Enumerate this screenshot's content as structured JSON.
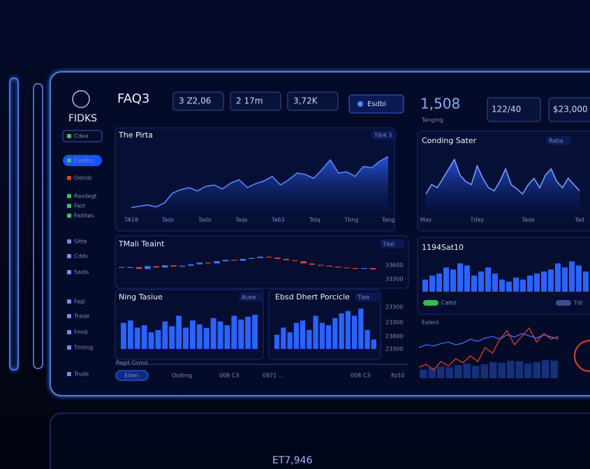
{
  "sidebar": {
    "logo": "FIDKS",
    "items": [
      "Cdea",
      "Ceatks",
      "Odnds",
      "Rasdegt",
      "Fast",
      "Fadites",
      "Sitte",
      "Cdds",
      "Sadis",
      "Fagi",
      "Trade",
      "Fmdi",
      "Tmling",
      "Truds"
    ]
  },
  "header": {
    "title": "FAQ3",
    "stats": [
      "3 Z2,06",
      "2 17m",
      "3,72K"
    ],
    "dropdown": "Esdbi",
    "kpi": "1,508",
    "kpi_label": "Tenging",
    "boxes": [
      "122/40",
      "$23,000"
    ]
  },
  "charts": {
    "pirta": {
      "title": "The Pirta",
      "tag": "T8/4 3",
      "x_labels": [
        "TA18",
        "Tads",
        "Tado",
        "Taqs",
        "Ta63",
        "Tolq",
        "Tbng",
        "Tang"
      ],
      "ylim": [
        0,
        100
      ],
      "values": [
        8,
        10,
        12,
        9,
        15,
        30,
        35,
        38,
        33,
        40,
        42,
        36,
        45,
        50,
        38,
        44,
        48,
        55,
        42,
        50,
        60,
        58,
        52,
        65,
        80,
        60,
        62,
        55,
        70,
        68,
        78,
        85
      ]
    },
    "conding": {
      "title": "Conding Sater",
      "tag": "Ratia",
      "x_labels": [
        "May",
        "Tday",
        "Tade",
        "Tad"
      ],
      "ylim": [
        0,
        100
      ],
      "values": [
        30,
        45,
        40,
        55,
        70,
        85,
        60,
        50,
        45,
        75,
        55,
        40,
        35,
        50,
        70,
        45,
        38,
        30,
        45,
        55,
        40,
        60,
        70,
        50,
        40,
        55,
        45,
        35
      ]
    },
    "candles": {
      "title": "TMali Teaint",
      "tag": "Tdal",
      "ylim": [
        0,
        100
      ],
      "open": [
        42,
        40,
        42,
        38,
        44,
        41,
        46,
        43,
        45,
        48,
        52,
        50,
        55,
        58,
        56,
        60,
        62,
        65,
        63,
        60,
        57,
        55,
        50,
        47,
        45,
        43,
        41,
        40,
        38,
        40
      ],
      "close": [
        40,
        42,
        38,
        44,
        41,
        46,
        43,
        45,
        48,
        52,
        50,
        55,
        58,
        56,
        60,
        62,
        65,
        63,
        60,
        57,
        55,
        50,
        47,
        45,
        43,
        41,
        40,
        38,
        40,
        37
      ],
      "axis_labels": [
        "33600",
        "33300",
        "23300",
        "23300",
        "23800",
        "23300"
      ]
    },
    "ning": {
      "title": "Ning Tasiue",
      "tag": "Auea",
      "ylim": [
        0,
        100
      ],
      "values": [
        55,
        60,
        45,
        50,
        35,
        40,
        58,
        48,
        70,
        45,
        60,
        52,
        44,
        65,
        58,
        50,
        70,
        62,
        68,
        72
      ]
    },
    "ebsd": {
      "title": "Ebsd Dhert Porcicle",
      "tag": "Tlea",
      "ylim": [
        0,
        100
      ],
      "values": [
        30,
        45,
        35,
        55,
        60,
        40,
        70,
        55,
        50,
        65,
        75,
        80,
        70,
        85,
        40,
        20
      ]
    },
    "sat": {
      "title": "1194Sat10",
      "ylim": [
        0,
        100
      ],
      "values": [
        30,
        40,
        45,
        60,
        55,
        70,
        65,
        40,
        50,
        60,
        45,
        30,
        25,
        35,
        30,
        40,
        45,
        50,
        55,
        70,
        60,
        75,
        65,
        50
      ],
      "legend": [
        "Caltd",
        "Tdl"
      ]
    },
    "trend": {
      "title": "Ealenl",
      "ylim": [
        0,
        100
      ],
      "series": [
        {
          "color": "#3b6dff",
          "values": [
            55,
            60,
            58,
            62,
            65,
            60,
            63,
            70,
            66,
            72,
            75,
            70,
            78,
            74,
            80,
            76,
            72,
            78,
            74,
            70
          ]
        },
        {
          "color": "#e0402c",
          "values": [
            20,
            25,
            15,
            30,
            22,
            35,
            28,
            40,
            30,
            55,
            45,
            70,
            85,
            60,
            75,
            90,
            65,
            80,
            70,
            75
          ]
        }
      ],
      "bars": [
        30,
        35,
        40,
        38,
        45,
        50,
        42,
        48,
        55,
        52,
        60,
        58,
        50,
        55,
        62,
        60
      ]
    }
  },
  "footer": {
    "title": "Pagd Gsmd",
    "button": "Eden",
    "items": [
      "Ooiting",
      "008 C3",
      "0871 ...",
      "008 C3",
      "8z10"
    ]
  },
  "reflection": {
    "value": "ET7,946"
  }
}
